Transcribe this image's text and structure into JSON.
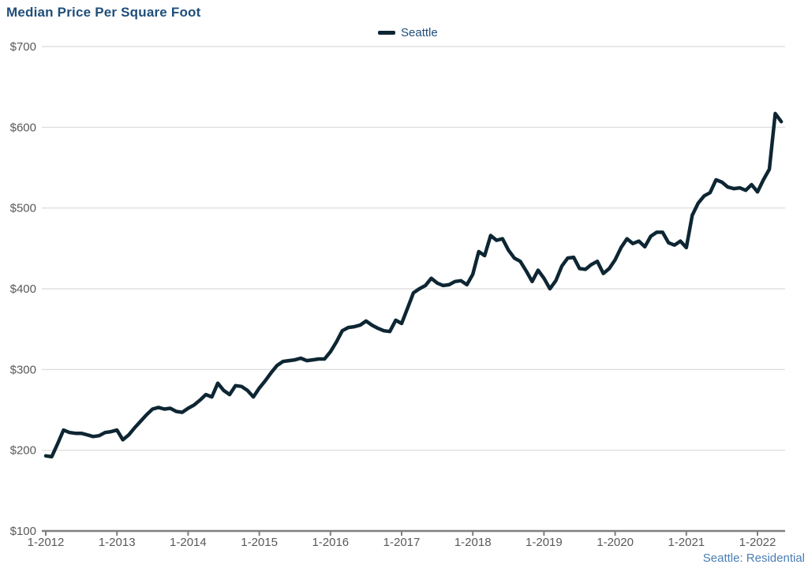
{
  "header": {
    "title": "Median Price Per Square Foot"
  },
  "legend": {
    "label": "Seattle"
  },
  "footer": {
    "source_label": "Seattle: Residential"
  },
  "colors": {
    "background": "#ffffff",
    "title": "#1f4e79",
    "legend_text": "#1f4e79",
    "line": "#0e2633",
    "gridline": "#d9d9d9",
    "axis": "#7f7f7f",
    "tick_label": "#595959",
    "footer_text": "#4a7eb5"
  },
  "chart_data": {
    "type": "line",
    "title": "Median Price Per Square Foot",
    "xlabel": "",
    "ylabel": "",
    "ylim": [
      100,
      700
    ],
    "y_tick_step": 100,
    "y_tick_labels": [
      "$100",
      "$200",
      "$300",
      "$400",
      "$500",
      "$600",
      "$700"
    ],
    "x_tick_labels": [
      "1-2012",
      "1-2013",
      "1-2014",
      "1-2015",
      "1-2016",
      "1-2017",
      "1-2018",
      "1-2019",
      "1-2020",
      "1-2021",
      "1-2022"
    ],
    "x_months_per_tick": 12,
    "grid": "horizontal-only",
    "legend_position": "top-center",
    "series": [
      {
        "name": "Seattle",
        "start": "1-2012",
        "end": "5-2022",
        "frequency": "monthly",
        "values": [
          193,
          192,
          208,
          225,
          222,
          221,
          221,
          219,
          217,
          218,
          222,
          223,
          225,
          213,
          219,
          228,
          236,
          244,
          251,
          253,
          251,
          252,
          248,
          247,
          252,
          256,
          262,
          269,
          266,
          283,
          274,
          269,
          280,
          279,
          274,
          266,
          277,
          286,
          296,
          305,
          310,
          311,
          312,
          314,
          311,
          312,
          313,
          313,
          322,
          334,
          348,
          352,
          353,
          355,
          360,
          355,
          351,
          348,
          347,
          361,
          357,
          376,
          395,
          400,
          404,
          413,
          407,
          404,
          405,
          409,
          410,
          405,
          418,
          446,
          441,
          466,
          460,
          462,
          448,
          438,
          434,
          422,
          409,
          423,
          413,
          400,
          410,
          428,
          438,
          439,
          425,
          424,
          430,
          434,
          419,
          425,
          436,
          451,
          462,
          456,
          459,
          452,
          465,
          470,
          470,
          457,
          454,
          459,
          451,
          491,
          506,
          515,
          519,
          535,
          532,
          526,
          524,
          525,
          522,
          529,
          520,
          535,
          548,
          617,
          607
        ]
      }
    ]
  }
}
